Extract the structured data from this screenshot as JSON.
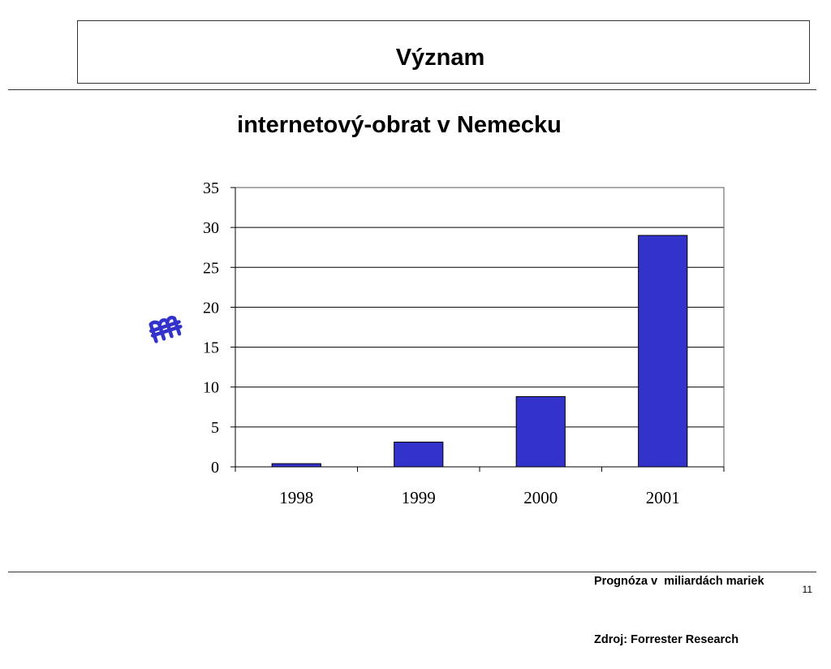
{
  "slide": {
    "title": "Význam",
    "page_number": "11"
  },
  "notes": {
    "forecast": "Prognóza v  miliardách mariek",
    "source": "Zdroj: Forrester Research"
  },
  "icons": {
    "currency": "deutsche-mark-icon",
    "currency_color": "#3333cc"
  },
  "chart_data": {
    "type": "bar",
    "title": "internetový-obrat v Nemecku",
    "categories": [
      "1998",
      "1999",
      "2000",
      "2001"
    ],
    "values": [
      0.4,
      3.1,
      8.8,
      29
    ],
    "xlabel": "",
    "ylabel": "",
    "ylim": [
      0,
      35
    ],
    "yticks": [
      0,
      5,
      10,
      15,
      20,
      25,
      30,
      35
    ],
    "grid": true,
    "legend": "none",
    "bar_color": "#3333cc"
  }
}
